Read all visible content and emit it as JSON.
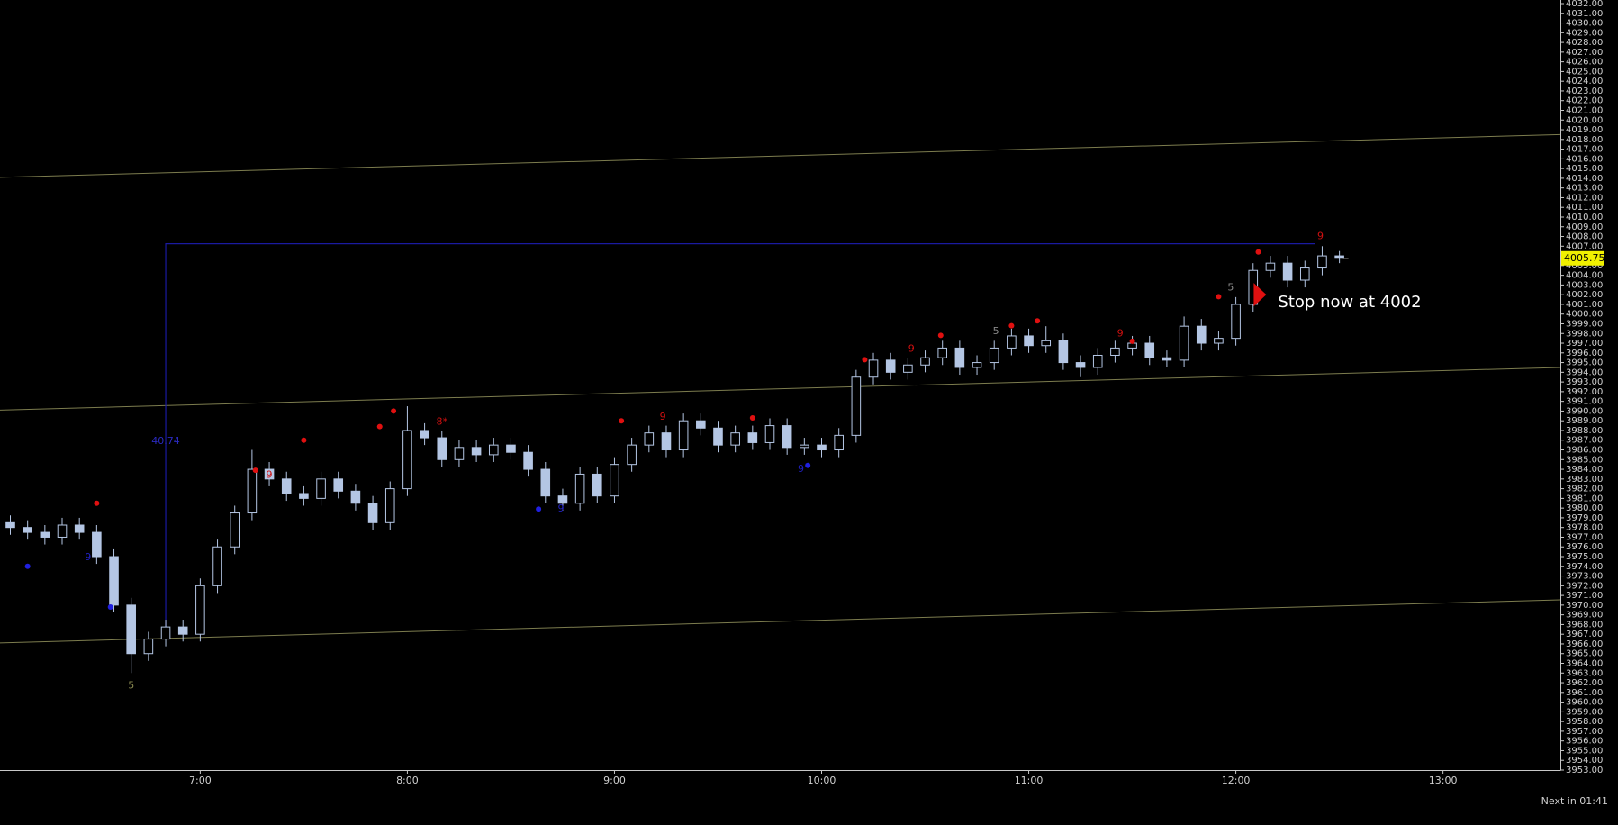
{
  "chart_data": {
    "type": "candlestick",
    "x": [
      365,
      370,
      375,
      380,
      385,
      390,
      395,
      400,
      405,
      410,
      415,
      420,
      425,
      430,
      435,
      440,
      445,
      450,
      455,
      460,
      465,
      470,
      475,
      480,
      485,
      490,
      495,
      500,
      505,
      510,
      515,
      520,
      525,
      530,
      535,
      540,
      545,
      550,
      555,
      560,
      565,
      570,
      575,
      580,
      585,
      590,
      595,
      600,
      605,
      610,
      615,
      620,
      625,
      630,
      635,
      640,
      645,
      650,
      655,
      660,
      665,
      670,
      675,
      680,
      685,
      690,
      695,
      700,
      705,
      710,
      715,
      720,
      725,
      730,
      735,
      740,
      745,
      750
    ],
    "open": [
      3978.5,
      3978,
      3977.5,
      3977,
      3978.25,
      3977.5,
      3975,
      3970,
      3965,
      3966.5,
      3967.75,
      3967,
      3972,
      3976,
      3979.5,
      3984,
      3983,
      3981.5,
      3981,
      3983,
      3981.75,
      3980.5,
      3978.5,
      3982,
      3988,
      3987.25,
      3985,
      3986.25,
      3985.5,
      3986.5,
      3985.75,
      3984,
      3981.25,
      3980.5,
      3983.5,
      3981.25,
      3984.5,
      3986.5,
      3987.75,
      3986,
      3989,
      3988.25,
      3986.5,
      3987.75,
      3986.75,
      3988.5,
      3986.25,
      3986.5,
      3986,
      3987.5,
      3993.5,
      3995.25,
      3994,
      3994.75,
      3995.5,
      3996.5,
      3994.5,
      3995,
      3996.5,
      3997.75,
      3996.75,
      3997.25,
      3995,
      3994.5,
      3995.75,
      3996.5,
      3997,
      3995.5,
      3995.25,
      3998.75,
      3997,
      3997.5,
      4001,
      4004.5,
      4005.25,
      4003.5,
      4004.75,
      4006
    ],
    "high": [
      3979.25,
      3978.75,
      3978.25,
      3979,
      3979,
      3978.25,
      3975.75,
      3970.75,
      3967.25,
      3968.5,
      3968.5,
      3972.75,
      3976.75,
      3980.25,
      3986,
      3984.75,
      3983.75,
      3982.25,
      3983.75,
      3983.75,
      3982.5,
      3981.25,
      3982.75,
      3990.5,
      3988.75,
      3988,
      3987,
      3987,
      3987.25,
      3987.25,
      3986.5,
      3984.75,
      3982,
      3984.25,
      3984.25,
      3985.25,
      3987.25,
      3988.5,
      3988.5,
      3989.75,
      3989.75,
      3989,
      3988.5,
      3988.5,
      3989.25,
      3989.25,
      3987.25,
      3987.25,
      3988.25,
      3994.25,
      3996,
      3996,
      3995.5,
      3996.25,
      3997.25,
      3997.25,
      3995.75,
      3997.25,
      3998.5,
      3998.5,
      3998.75,
      3998,
      3995.75,
      3996.5,
      3997.25,
      3997.75,
      3997.75,
      3996.25,
      3999.75,
      3999.5,
      3998.25,
      4001.75,
      4005.25,
      4006,
      4006,
      4005.5,
      4007,
      4006.5
    ],
    "low": [
      3977.25,
      3976.75,
      3976.25,
      3976.25,
      3976.75,
      3974.25,
      3969.25,
      3963,
      3964.25,
      3965.75,
      3966.25,
      3966.25,
      3971.25,
      3975.25,
      3978.75,
      3982.25,
      3980.75,
      3980.25,
      3980.25,
      3981,
      3979.75,
      3977.75,
      3977.75,
      3981.25,
      3986.5,
      3984.25,
      3984.25,
      3984.75,
      3984.75,
      3985,
      3983.25,
      3980.5,
      3979.75,
      3979.75,
      3980.5,
      3980.5,
      3983.75,
      3985.75,
      3985.25,
      3985.25,
      3987.5,
      3985.75,
      3985.75,
      3986,
      3986,
      3985.5,
      3985.5,
      3985.25,
      3985.25,
      3986.75,
      3992.75,
      3993.25,
      3993.25,
      3994,
      3994.75,
      3993.75,
      3993.75,
      3994.25,
      3995.75,
      3996,
      3996,
      3994.25,
      3993.5,
      3993.75,
      3995,
      3995.75,
      3994.75,
      3994.5,
      3994.5,
      3996.25,
      3996.25,
      3996.75,
      4000.25,
      4003.75,
      4002.75,
      4002.75,
      4004,
      4005.25
    ],
    "close": [
      3978,
      3977.5,
      3977,
      3978.25,
      3977.5,
      3975,
      3970,
      3965,
      3966.5,
      3967.75,
      3967,
      3972,
      3976,
      3979.5,
      3984,
      3983,
      3981.5,
      3981,
      3983,
      3981.75,
      3980.5,
      3978.5,
      3982,
      3988,
      3987.25,
      3985,
      3986.25,
      3985.5,
      3986.5,
      3985.75,
      3984,
      3981.25,
      3980.5,
      3983.5,
      3981.25,
      3984.5,
      3986.5,
      3987.75,
      3986,
      3989,
      3988.25,
      3986.5,
      3987.75,
      3986.75,
      3988.5,
      3986.25,
      3986.5,
      3986,
      3987.5,
      3993.5,
      3995.25,
      3994,
      3994.75,
      3995.5,
      3996.5,
      3994.5,
      3995,
      3996.5,
      3997.75,
      3996.75,
      3997.25,
      3995,
      3994.5,
      3995.75,
      3996.5,
      3997,
      3995.5,
      3995.25,
      3998.75,
      3997,
      3997.5,
      4001,
      4004.5,
      4005.25,
      4003.5,
      4004.75,
      4006,
      4005.75
    ],
    "candle_color": "#b4c6e4",
    "xlim": [
      362,
      814
    ],
    "ylim": [
      3953,
      4032
    ],
    "xticks": [
      {
        "value": 420,
        "label": "7:00"
      },
      {
        "value": 480,
        "label": "8:00"
      },
      {
        "value": 540,
        "label": "9:00"
      },
      {
        "value": 600,
        "label": "10:00"
      },
      {
        "value": 660,
        "label": "11:00"
      },
      {
        "value": 720,
        "label": "12:00"
      },
      {
        "value": 780,
        "label": "13:00"
      }
    ],
    "yticks": [
      {
        "value": 3953,
        "label": "3953.00"
      },
      {
        "value": 3954,
        "label": "3954.00"
      },
      {
        "value": 3955,
        "label": "3955.00"
      },
      {
        "value": 3956,
        "label": "3956.00"
      },
      {
        "value": 3957,
        "label": "3957.00"
      },
      {
        "value": 3958,
        "label": "3958.00"
      },
      {
        "value": 3959,
        "label": "3959.00"
      },
      {
        "value": 3960,
        "label": "3960.00"
      },
      {
        "value": 3961,
        "label": "3961.00"
      },
      {
        "value": 3962,
        "label": "3962.00"
      },
      {
        "value": 3963,
        "label": "3963.00"
      },
      {
        "value": 3964,
        "label": "3964.00"
      },
      {
        "value": 3965,
        "label": "3965.00"
      },
      {
        "value": 3966,
        "label": "3966.00"
      },
      {
        "value": 3967,
        "label": "3967.00"
      },
      {
        "value": 3968,
        "label": "3968.00"
      },
      {
        "value": 3969,
        "label": "3969.00"
      },
      {
        "value": 3970,
        "label": "3970.00"
      },
      {
        "value": 3971,
        "label": "3971.00"
      },
      {
        "value": 3972,
        "label": "3972.00"
      },
      {
        "value": 3973,
        "label": "3973.00"
      },
      {
        "value": 3974,
        "label": "3974.00"
      },
      {
        "value": 3975,
        "label": "3975.00"
      },
      {
        "value": 3976,
        "label": "3976.00"
      },
      {
        "value": 3977,
        "label": "3977.00"
      },
      {
        "value": 3978,
        "label": "3978.00"
      },
      {
        "value": 3979,
        "label": "3979.00"
      },
      {
        "value": 3980,
        "label": "3980.00"
      },
      {
        "value": 3981,
        "label": "3981.00"
      },
      {
        "value": 3982,
        "label": "3982.00"
      },
      {
        "value": 3983,
        "label": "3983.00"
      },
      {
        "value": 3984,
        "label": "3984.00"
      },
      {
        "value": 3985,
        "label": "3985.00"
      },
      {
        "value": 3986,
        "label": "3986.00"
      },
      {
        "value": 3987,
        "label": "3987.00"
      },
      {
        "value": 3988,
        "label": "3988.00"
      },
      {
        "value": 3989,
        "label": "3989.00"
      },
      {
        "value": 3990,
        "label": "3990.00"
      },
      {
        "value": 3991,
        "label": "3991.00"
      },
      {
        "value": 3992,
        "label": "3992.00"
      },
      {
        "value": 3993,
        "label": "3993.00"
      },
      {
        "value": 3994,
        "label": "3994.00"
      },
      {
        "value": 3995,
        "label": "3995.00"
      },
      {
        "value": 3996,
        "label": "3996.00"
      },
      {
        "value": 3997,
        "label": "3997.00"
      },
      {
        "value": 3998,
        "label": "3998.00"
      },
      {
        "value": 3999,
        "label": "3999.00"
      },
      {
        "value": 4000,
        "label": "4000.00"
      },
      {
        "value": 4001,
        "label": "4001.00"
      },
      {
        "value": 4002,
        "label": "4002.00"
      },
      {
        "value": 4003,
        "label": "4003.00"
      },
      {
        "value": 4004,
        "label": "4004.00"
      },
      {
        "value": 4005,
        "label": "4005.00"
      },
      {
        "value": 4006,
        "label": "4006.00"
      },
      {
        "value": 4007,
        "label": "4007.00"
      },
      {
        "value": 4008,
        "label": "4008.00"
      },
      {
        "value": 4009,
        "label": "4009.00"
      },
      {
        "value": 4010,
        "label": "4010.00"
      },
      {
        "value": 4011,
        "label": "4011.00"
      },
      {
        "value": 4012,
        "label": "4012.00"
      },
      {
        "value": 4013,
        "label": "4013.00"
      },
      {
        "value": 4014,
        "label": "4014.00"
      },
      {
        "value": 4015,
        "label": "4015.00"
      },
      {
        "value": 4016,
        "label": "4016.00"
      },
      {
        "value": 4017,
        "label": "4017.00"
      },
      {
        "value": 4018,
        "label": "4018.00"
      },
      {
        "value": 4019,
        "label": "4019.00"
      },
      {
        "value": 4020,
        "label": "4020.00"
      },
      {
        "value": 4021,
        "label": "4021.00"
      },
      {
        "value": 4022,
        "label": "4022.00"
      },
      {
        "value": 4023,
        "label": "4023.00"
      },
      {
        "value": 4024,
        "label": "4024.00"
      },
      {
        "value": 4025,
        "label": "4025.00"
      },
      {
        "value": 4026,
        "label": "4026.00"
      },
      {
        "value": 4027,
        "label": "4027.00"
      },
      {
        "value": 4028,
        "label": "4028.00"
      },
      {
        "value": 4029,
        "label": "4029.00"
      },
      {
        "value": 4030,
        "label": "4030.00"
      },
      {
        "value": 4031,
        "label": "4031.00"
      },
      {
        "value": 4032,
        "label": "4032.00"
      }
    ],
    "channel_color": "#7c7c4e",
    "channel_lines": [
      {
        "x": [
          362,
          814
        ],
        "y": [
          4014.1,
          4018.5
        ]
      },
      {
        "x": [
          362,
          814
        ],
        "y": [
          3990.1,
          3994.5
        ]
      },
      {
        "x": [
          362,
          814
        ],
        "y": [
          3966.1,
          3970.55
        ]
      }
    ],
    "measure": {
      "x": [
        410,
        743
      ],
      "y": [
        4007.25,
        3966.5
      ],
      "label": "40.74",
      "color": "#1a1aa0"
    },
    "markers": [
      {
        "x": 390,
        "y": 3980.5,
        "color": "#e01010"
      },
      {
        "x": 436,
        "y": 3983.9,
        "color": "#e01010"
      },
      {
        "x": 450,
        "y": 3987,
        "color": "#e01010"
      },
      {
        "x": 472,
        "y": 3988.4,
        "color": "#e01010"
      },
      {
        "x": 476,
        "y": 3990,
        "color": "#e01010"
      },
      {
        "x": 542,
        "y": 3989,
        "color": "#e01010"
      },
      {
        "x": 580,
        "y": 3989.3,
        "color": "#e01010"
      },
      {
        "x": 612.5,
        "y": 3995.3,
        "color": "#e01010"
      },
      {
        "x": 634.5,
        "y": 3997.8,
        "color": "#e01010"
      },
      {
        "x": 655,
        "y": 3998.8,
        "color": "#e01010"
      },
      {
        "x": 662.5,
        "y": 3999.3,
        "color": "#e01010"
      },
      {
        "x": 690,
        "y": 3997.2,
        "color": "#e01010"
      },
      {
        "x": 715,
        "y": 4001.8,
        "color": "#e01010"
      },
      {
        "x": 726.5,
        "y": 4006.4,
        "color": "#e01010"
      },
      {
        "x": 370,
        "y": 3974,
        "color": "#2020e0"
      },
      {
        "x": 394,
        "y": 3969.8,
        "color": "#2020e0"
      },
      {
        "x": 518,
        "y": 3979.9,
        "color": "#2020e0"
      },
      {
        "x": 596,
        "y": 3984.4,
        "color": "#2020e0"
      }
    ],
    "annotations": [
      {
        "x": 440,
        "y": 3983.4,
        "text": "9",
        "color": "#d01010"
      },
      {
        "x": 490,
        "y": 3988.9,
        "text": "8*",
        "color": "#d01010"
      },
      {
        "x": 554,
        "y": 3989.4,
        "text": "9",
        "color": "#d01010"
      },
      {
        "x": 626,
        "y": 3996.4,
        "text": "9",
        "color": "#d01010"
      },
      {
        "x": 650.5,
        "y": 3998.2,
        "text": "5",
        "color": "#8a8a8a"
      },
      {
        "x": 686.5,
        "y": 3998,
        "text": "9",
        "color": "#d01010"
      },
      {
        "x": 718.5,
        "y": 4002.7,
        "text": "5",
        "color": "#8a8a8a"
      },
      {
        "x": 744.5,
        "y": 4008,
        "text": "9",
        "color": "#d01010"
      },
      {
        "x": 400,
        "y": 3961.7,
        "text": "5",
        "color": "#8a8a50"
      },
      {
        "x": 524.5,
        "y": 3979.9,
        "text": "9",
        "color": "#2020c0"
      },
      {
        "x": 594,
        "y": 3984,
        "text": "9",
        "color": "#2020c0"
      },
      {
        "x": 387.5,
        "y": 3974.9,
        "text": "9",
        "color": "#2020c0"
      }
    ],
    "stop": {
      "x": 727,
      "y": 4002,
      "text": "Stop now at 4002",
      "color": "#e01010"
    },
    "last_price_color": "#f0f000",
    "status": "Next in 01:41"
  }
}
